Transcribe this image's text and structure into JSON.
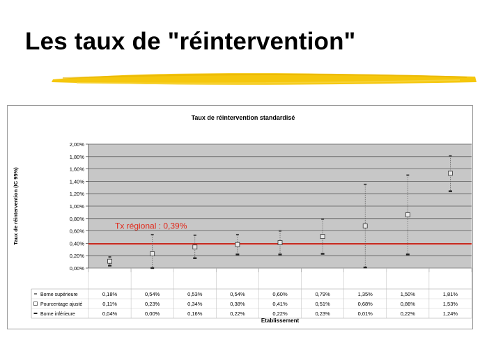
{
  "slide": {
    "title": "Les taux de \"réintervention\"",
    "highlight_color": "#f2c200"
  },
  "chart_data": {
    "type": "scatter",
    "title": "Taux de réintervention standardisé",
    "ylabel": "Taux de réintervention (IC 95%)",
    "xlabel": "Etablissement",
    "ylim": [
      0,
      2.0
    ],
    "yticks": [
      "0,00%",
      "0,20%",
      "0,40%",
      "0,60%",
      "0,80%",
      "1,00%",
      "1,20%",
      "1,40%",
      "1,60%",
      "1,80%",
      "2,00%"
    ],
    "grid": true,
    "legend": "table-left",
    "regional_rate": {
      "label": "Tx régional : 0,39%",
      "value": 0.39,
      "color": "#e0281a"
    },
    "series": [
      {
        "name": "Borne supérieure",
        "values": [
          0.18,
          0.54,
          0.53,
          0.54,
          0.6,
          0.79,
          1.35,
          1.5,
          1.81
        ],
        "labels": [
          "0,18%",
          "0,54%",
          "0,53%",
          "0,54%",
          "0,60%",
          "0,79%",
          "1,35%",
          "1,50%",
          "1,81%"
        ]
      },
      {
        "name": "Pourcentage ajusté",
        "values": [
          0.11,
          0.23,
          0.34,
          0.38,
          0.41,
          0.51,
          0.68,
          0.86,
          1.53
        ],
        "labels": [
          "0,11%",
          "0,23%",
          "0,34%",
          "0,38%",
          "0,41%",
          "0,51%",
          "0,68%",
          "0,86%",
          "1,53%"
        ]
      },
      {
        "name": "Borne inférieure",
        "values": [
          0.04,
          0.0,
          0.16,
          0.22,
          0.22,
          0.23,
          0.01,
          0.22,
          1.24
        ],
        "labels": [
          "0,04%",
          "0,00%",
          "0,16%",
          "0,22%",
          "0,22%",
          "0,23%",
          "0,01%",
          "0,22%",
          "1,24%"
        ]
      }
    ]
  }
}
